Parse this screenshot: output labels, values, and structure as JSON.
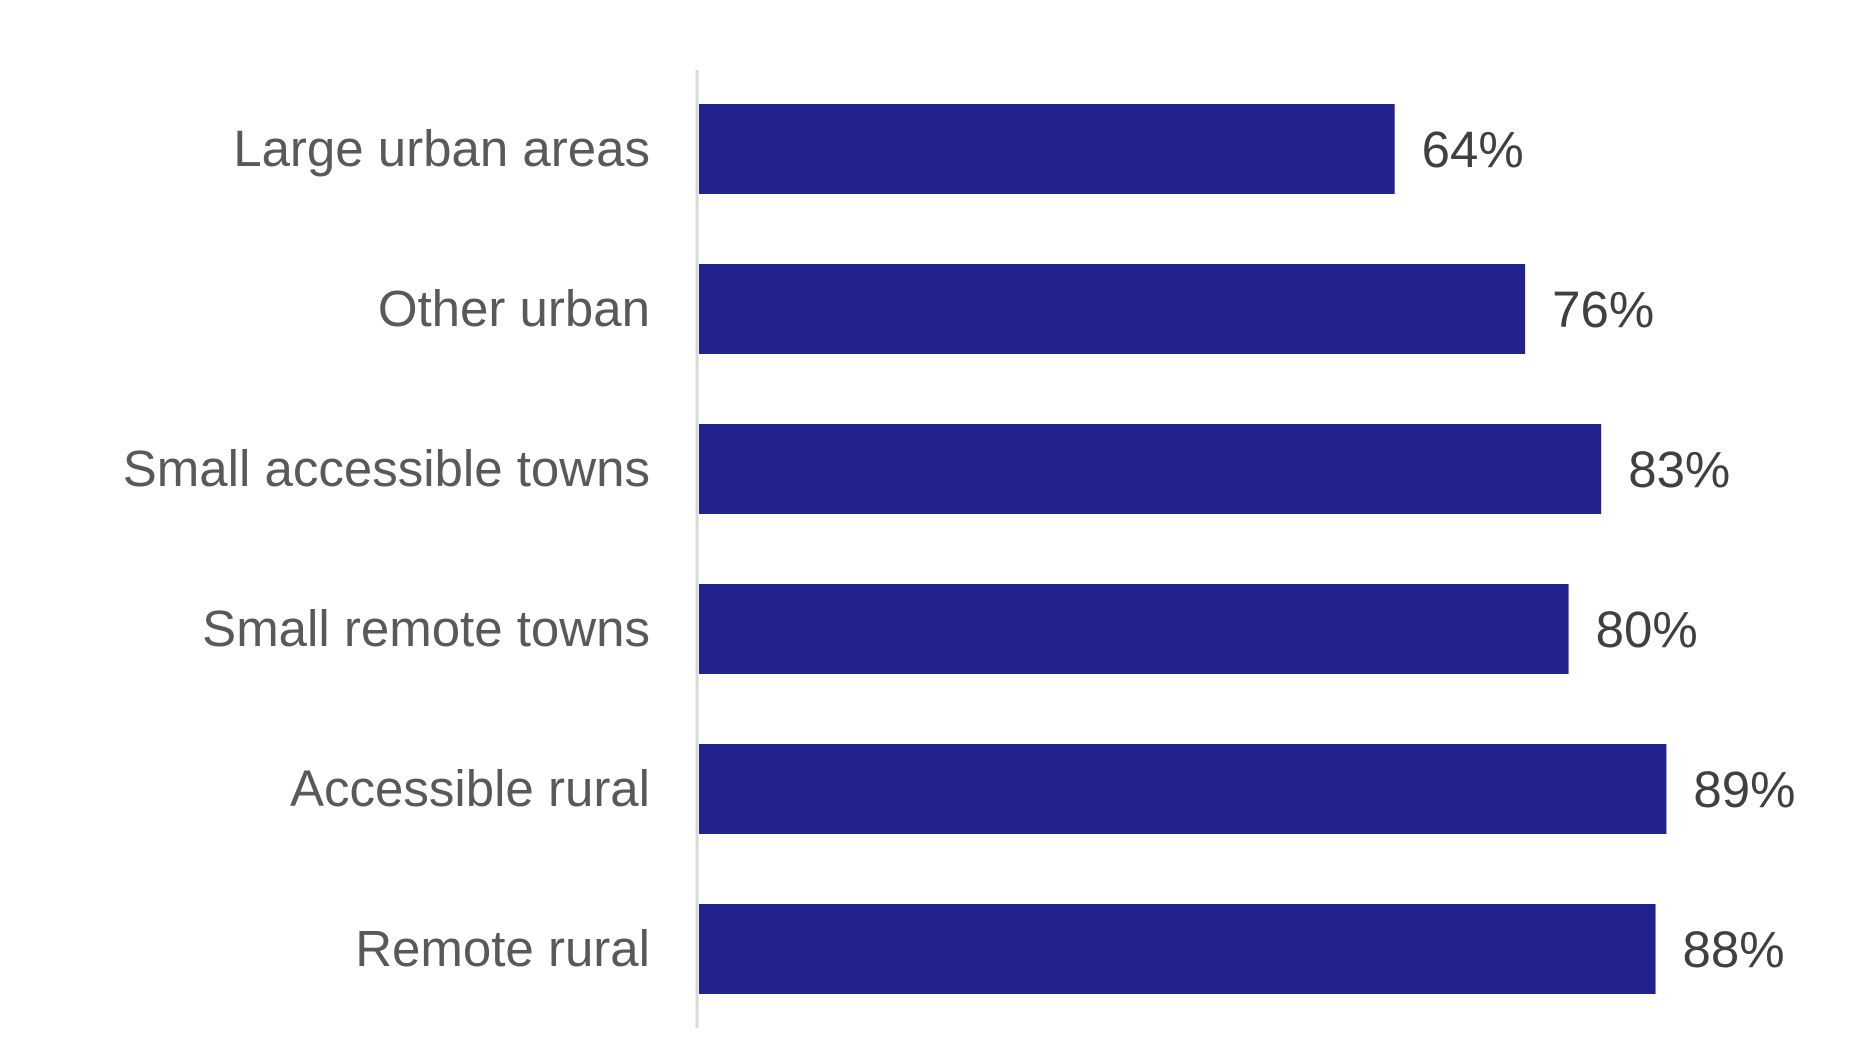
{
  "chart_data": {
    "type": "bar",
    "orientation": "horizontal",
    "categories": [
      "Large urban areas",
      "Other urban",
      "Small accessible towns",
      "Small remote towns",
      "Accessible rural",
      "Remote rural"
    ],
    "values": [
      64,
      76,
      83,
      80,
      89,
      88
    ],
    "value_labels": [
      "64%",
      "76%",
      "83%",
      "80%",
      "89%",
      "88%"
    ],
    "xlim": [
      0,
      100
    ],
    "grid": false,
    "legend": "none",
    "bar_color": "#22228f"
  }
}
